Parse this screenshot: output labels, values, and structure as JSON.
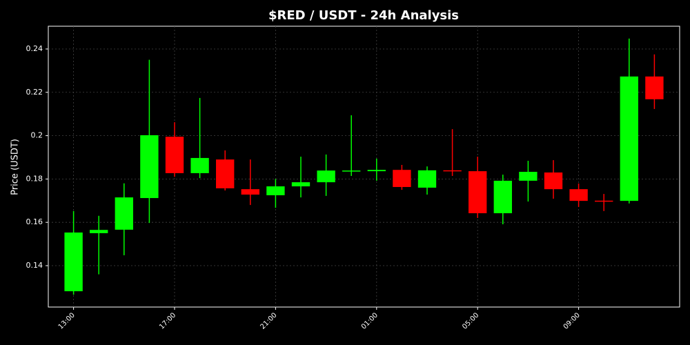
{
  "chart_data": {
    "type": "candlestick",
    "title": "$RED / USDT - 24h Analysis",
    "y_label": "Price (USDT)",
    "categories": [
      "13:00",
      null,
      null,
      null,
      "17:00",
      null,
      null,
      null,
      "21:00",
      null,
      null,
      null,
      "01:00",
      null,
      null,
      null,
      "05:00",
      null,
      null,
      null,
      "09:00",
      null,
      null,
      null
    ],
    "open": [
      0.1282,
      0.155,
      0.1566,
      0.1712,
      0.1995,
      0.1827,
      0.189,
      0.1753,
      0.1725,
      0.1766,
      0.1785,
      0.1837,
      0.1836,
      0.1842,
      0.176,
      0.184,
      0.1836,
      0.1642,
      0.1792,
      0.183,
      0.1753,
      0.17,
      0.1699,
      0.2273
    ],
    "high": [
      0.1652,
      0.163,
      0.178,
      0.235,
      0.2062,
      0.2174,
      0.1932,
      0.189,
      0.18,
      0.1903,
      0.1913,
      0.2094,
      0.1894,
      0.1865,
      0.1858,
      0.203,
      0.1903,
      0.182,
      0.1884,
      0.1887,
      0.1779,
      0.1731,
      0.2448,
      0.2375
    ],
    "low": [
      0.1266,
      0.136,
      0.1448,
      0.1597,
      0.181,
      0.1804,
      0.1747,
      0.168,
      0.1667,
      0.1715,
      0.1722,
      0.1814,
      0.1792,
      0.175,
      0.1728,
      0.1814,
      0.162,
      0.1591,
      0.1696,
      0.1709,
      0.1671,
      0.1652,
      0.1687,
      0.2123
    ],
    "close": [
      0.1553,
      0.1565,
      0.1715,
      0.2002,
      0.1827,
      0.1897,
      0.1757,
      0.1728,
      0.1766,
      0.1785,
      0.1839,
      0.1839,
      0.1842,
      0.1763,
      0.184,
      0.1836,
      0.1642,
      0.1792,
      0.1833,
      0.1753,
      0.1699,
      0.1698,
      0.2273,
      0.2168
    ],
    "up_color": "#00ff00",
    "down_color": "#ff0000",
    "ylim": [
      0.1209,
      0.2505
    ],
    "yticks": [
      0.14,
      0.16,
      0.18,
      0.2,
      0.22,
      0.24
    ],
    "grid": true
  }
}
